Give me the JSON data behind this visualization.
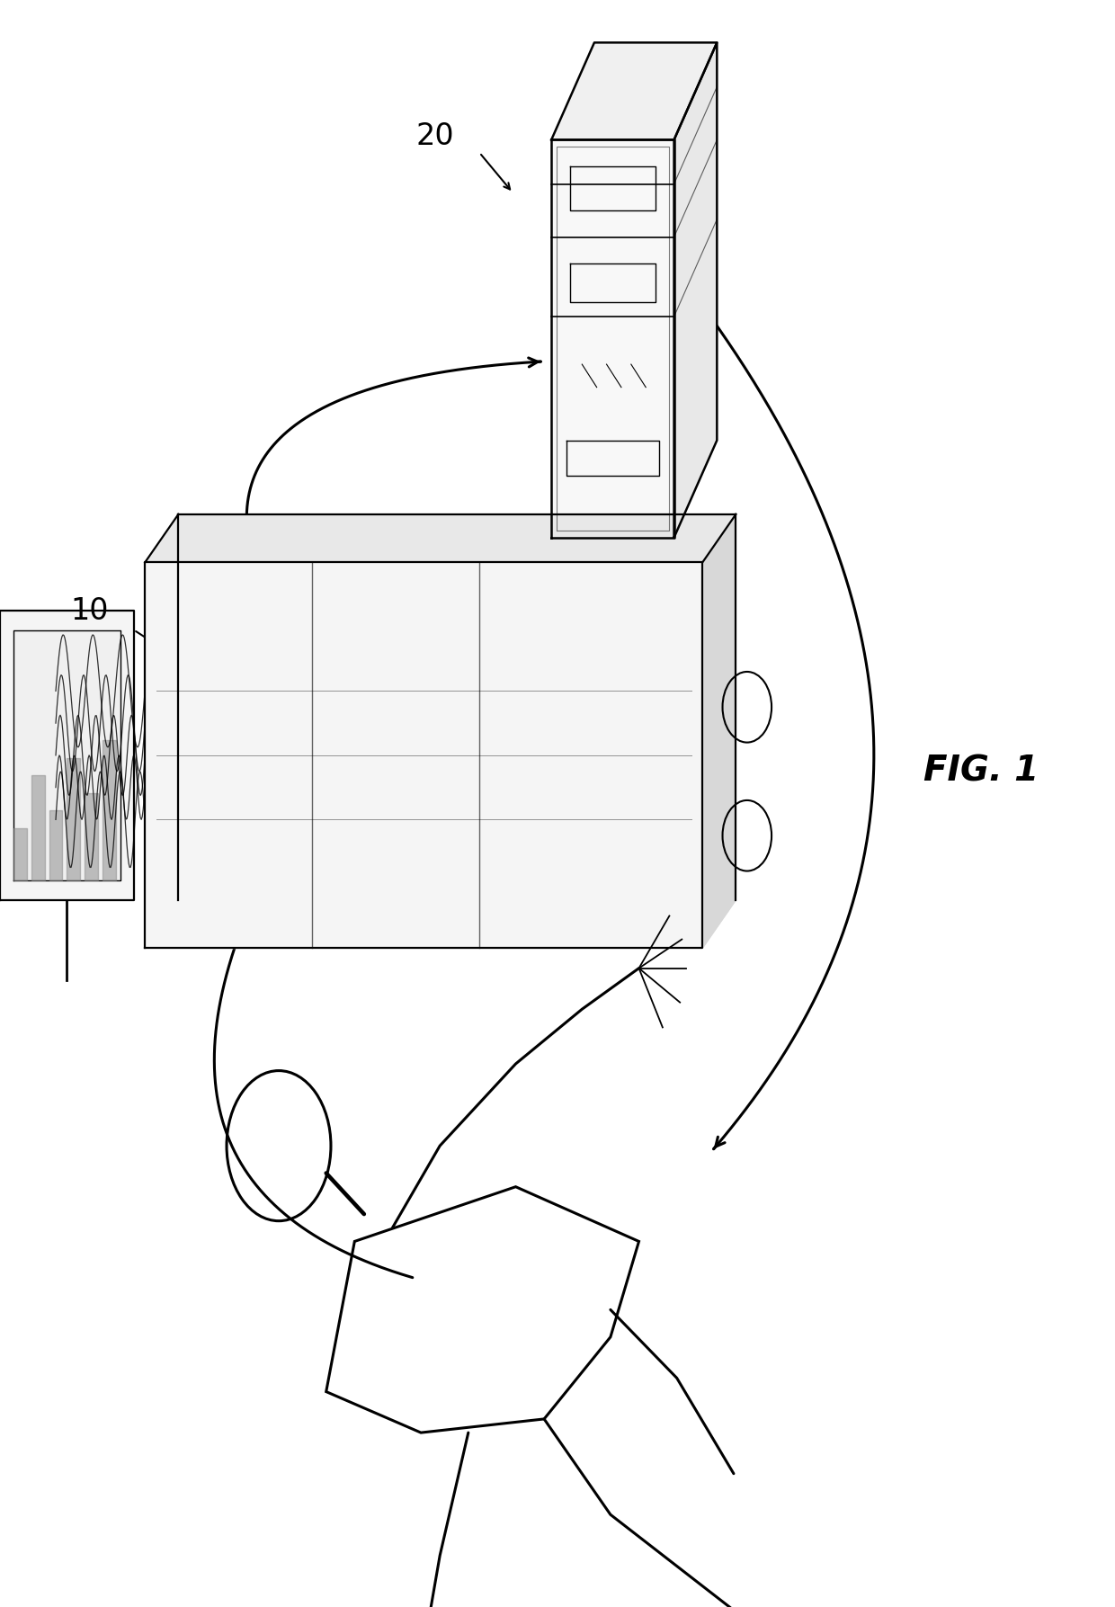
{
  "fig_label": "FIG. 1",
  "label_10": "10",
  "label_20": "20",
  "background_color": "#ffffff",
  "line_color": "#000000",
  "fig_width": 12.4,
  "fig_height": 17.87,
  "dpi": 100
}
